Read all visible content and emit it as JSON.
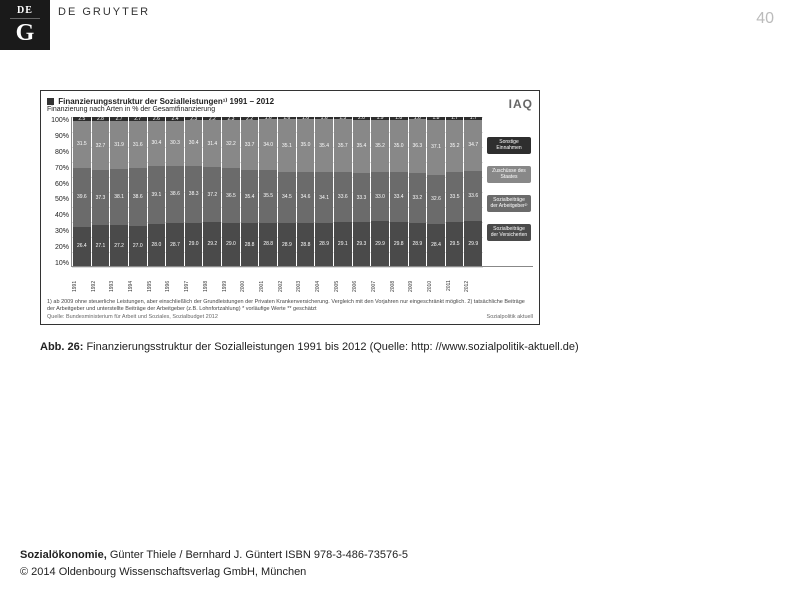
{
  "page_number": "40",
  "brand": "DE GRUYTER",
  "logo_de": "DE",
  "logo_g": "G",
  "caption_label": "Abb. 26:",
  "caption_text": " Finanzierungsstruktur der Sozialleistungen 1991 bis 2012 (Quelle: http: //www.sozialpolitik-aktuell.de)",
  "footer_book": "Sozialökonomie,",
  "footer_authors": " Günter Thiele / Bernhard J. Güntert ISBN 978-3-486-73576-5",
  "footer_copyright": "© 2014 Oldenbourg Wissenschaftsverlag GmbH, München",
  "chart": {
    "type": "stacked-bar",
    "title": "Finanzierungsstruktur der Sozialleistungen¹⁾ 1991 – 2012",
    "subtitle": "Finanzierung nach Arten in % der Gesamtfinanzierung",
    "source_logo": "IAQ",
    "ylim": [
      0,
      100
    ],
    "ytick_step": 10,
    "yticks": [
      "100%",
      "90%",
      "80%",
      "70%",
      "60%",
      "50%",
      "40%",
      "30%",
      "20%",
      "10%"
    ],
    "categories": [
      "1991",
      "1992",
      "1993",
      "1994",
      "1995",
      "1996",
      "1997",
      "1998",
      "1999",
      "2000",
      "2001",
      "2002",
      "2003",
      "2004",
      "2005",
      "2006",
      "2007",
      "2008",
      "2009",
      "2010",
      "2011",
      "2012"
    ],
    "legend": [
      "Sonstige Einnahmen",
      "Zuschüsse des Staates",
      "Sozialbeiträge der Arbeitgeber²⁾",
      "Sozialbeiträge der Versicherten"
    ],
    "segment_colors": [
      "#2e2e2e",
      "#888888",
      "#6b6b6b",
      "#4a4a4a"
    ],
    "series": [
      {
        "other": 2.5,
        "state": 31.5,
        "employer": 39.6,
        "insured": 26.4
      },
      {
        "other": 2.8,
        "state": 32.7,
        "employer": 37.3,
        "insured": 27.1
      },
      {
        "other": 2.7,
        "state": 31.9,
        "employer": 38.1,
        "insured": 27.2
      },
      {
        "other": 2.7,
        "state": 31.6,
        "employer": 38.6,
        "insured": 27.0
      },
      {
        "other": 2.6,
        "state": 30.4,
        "employer": 39.1,
        "insured": 28.0
      },
      {
        "other": 2.4,
        "state": 30.3,
        "employer": 38.6,
        "insured": 28.7
      },
      {
        "other": 2.3,
        "state": 30.4,
        "employer": 38.3,
        "insured": 29.0
      },
      {
        "other": 2.2,
        "state": 31.4,
        "employer": 37.2,
        "insured": 29.2
      },
      {
        "other": 2.3,
        "state": 32.2,
        "employer": 36.5,
        "insured": 29.0
      },
      {
        "other": 2.2,
        "state": 33.7,
        "employer": 35.4,
        "insured": 28.8
      },
      {
        "other": 1.6,
        "state": 34.0,
        "employer": 35.5,
        "insured": 28.8
      },
      {
        "other": 1.6,
        "state": 35.1,
        "employer": 34.5,
        "insured": 28.9
      },
      {
        "other": 1.6,
        "state": 35.0,
        "employer": 34.6,
        "insured": 28.8
      },
      {
        "other": 1.6,
        "state": 35.4,
        "employer": 34.1,
        "insured": 28.9
      },
      {
        "other": 1.5,
        "state": 35.7,
        "employer": 33.6,
        "insured": 29.1
      },
      {
        "other": 2.0,
        "state": 35.4,
        "employer": 33.3,
        "insured": 29.3
      },
      {
        "other": 1.9,
        "state": 35.2,
        "employer": 33.0,
        "insured": 29.9
      },
      {
        "other": 1.8,
        "state": 35.0,
        "employer": 33.4,
        "insured": 29.8
      },
      {
        "other": 1.6,
        "state": 36.3,
        "employer": 33.2,
        "insured": 28.9
      },
      {
        "other": 1.8,
        "state": 37.1,
        "employer": 32.6,
        "insured": 28.4
      },
      {
        "other": 1.7,
        "state": 35.2,
        "employer": 33.5,
        "insured": 29.5
      },
      {
        "other": 1.7,
        "state": 34.7,
        "employer": 33.6,
        "insured": 29.9
      }
    ],
    "footnote": "1) ab 2009 ohne steuerliche Leistungen, aber einschließlich der Grundleistungen der Privaten Krankenversicherung. Vergleich mit den Vorjahren nur eingeschränkt möglich.  2) tatsächliche Beiträge der Arbeitgeber und unterstellte Beiträge der Arbeitgeber (z.B. Lohnfortzahlung)          * vorläufige Werte  ** geschätzt",
    "footer_left": "Quelle: Bundesministerium für Arbeit und Soziales, Sozialbudget 2012",
    "footer_right": "Sozialpolitik aktuell"
  }
}
